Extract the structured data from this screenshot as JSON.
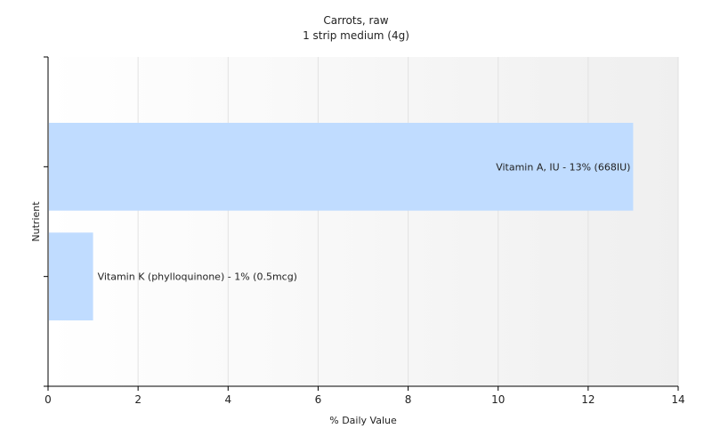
{
  "chart_data": {
    "type": "bar",
    "orientation": "horizontal",
    "title": "Carrots, raw",
    "subtitle": "1 strip medium (4g)",
    "xlabel": "% Daily Value",
    "ylabel": "Nutrient",
    "xlim": [
      0,
      14
    ],
    "xticks": [
      0,
      2,
      4,
      6,
      8,
      10,
      12,
      14
    ],
    "grid": true,
    "bar_color": "#c0dcff",
    "categories": [
      "Vitamin A, IU",
      "Vitamin K (phylloquinone)"
    ],
    "values": [
      13,
      1
    ],
    "data_labels": [
      "Vitamin A, IU - 13% (668IU)",
      "Vitamin K (phylloquinone) - 1% (0.5mcg)"
    ]
  }
}
